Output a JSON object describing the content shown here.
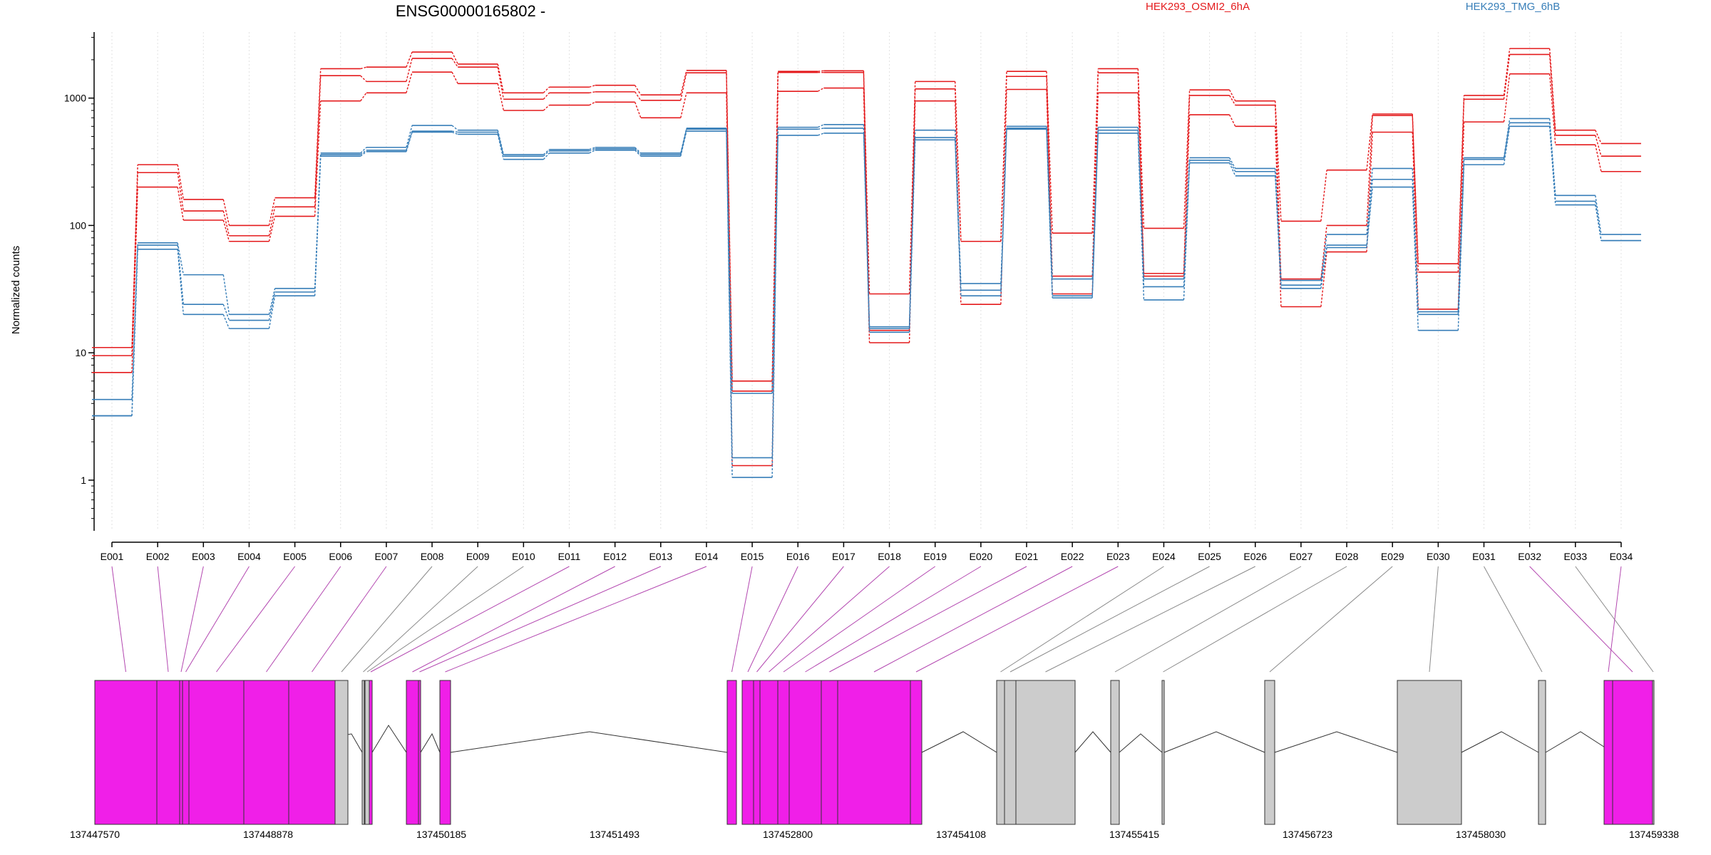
{
  "chart_data": {
    "type": "line",
    "title": "ENSG00000165802 -",
    "ylabel": "Normalized counts",
    "xlabel": "",
    "y_scale": "log",
    "ylim": [
      0.4,
      3300
    ],
    "y_ticks": [
      1,
      10,
      100,
      1000
    ],
    "y_tick_labels": [
      "1",
      "10",
      "100",
      "1000"
    ],
    "grid": "vertical dotted",
    "legend_position": "top",
    "categories": [
      "E001",
      "E002",
      "E003",
      "E004",
      "E005",
      "E006",
      "E007",
      "E008",
      "E009",
      "E010",
      "E011",
      "E012",
      "E013",
      "E014",
      "E015",
      "E016",
      "E017",
      "E018",
      "E019",
      "E020",
      "E021",
      "E022",
      "E023",
      "E024",
      "E025",
      "E026",
      "E027",
      "E028",
      "E029",
      "E030",
      "E031",
      "E032",
      "E033",
      "E034"
    ],
    "series": [
      {
        "name": "HEK293_OSMI2_6hA",
        "color": "#e41a1c",
        "values": [
          11,
          300,
          160,
          100,
          165,
          1700,
          1750,
          2300,
          1850,
          1100,
          1220,
          1260,
          1060,
          1650,
          6,
          1620,
          1640,
          29,
          1350,
          75,
          1620,
          87,
          1700,
          95,
          1160,
          950,
          108,
          272,
          750,
          50,
          1050,
          2450,
          560,
          440
        ]
      },
      {
        "name": "HEK293_OSMI2_6hA",
        "color": "#e41a1c",
        "values": [
          9.5,
          260,
          130,
          83,
          140,
          1500,
          1350,
          2050,
          1750,
          980,
          1100,
          1120,
          960,
          1580,
          5,
          1590,
          1590,
          15,
          1180,
          75,
          1480,
          40,
          1580,
          42,
          1050,
          880,
          38,
          100,
          730,
          43,
          980,
          2200,
          510,
          350
        ]
      },
      {
        "name": "HEK293_OSMI2_6hA",
        "color": "#e41a1c",
        "values": [
          7,
          200,
          110,
          75,
          118,
          950,
          1100,
          1600,
          1300,
          800,
          880,
          930,
          700,
          1100,
          1.3,
          1130,
          1200,
          12,
          950,
          24,
          1170,
          29,
          1100,
          40,
          740,
          600,
          23,
          62,
          540,
          22,
          650,
          1550,
          430,
          265
        ]
      },
      {
        "name": "HEK293_TMG_6hB",
        "color": "#377eb8",
        "values": [
          4.3,
          73,
          41,
          20,
          32,
          370,
          410,
          610,
          560,
          360,
          395,
          410,
          370,
          580,
          4.8,
          590,
          620,
          16,
          560,
          35,
          600,
          38,
          590,
          38,
          340,
          280,
          37,
          85,
          280,
          21,
          340,
          690,
          172,
          85
        ]
      },
      {
        "name": "HEK293_TMG_6hB",
        "color": "#377eb8",
        "values": [
          3.2,
          70,
          24,
          18,
          30,
          360,
          390,
          550,
          540,
          350,
          385,
          400,
          360,
          570,
          1.5,
          570,
          580,
          15.5,
          490,
          31,
          580,
          28,
          560,
          33,
          325,
          265,
          34,
          70,
          230,
          20,
          330,
          640,
          155,
          76
        ]
      },
      {
        "name": "HEK293_TMG_6hB",
        "color": "#377eb8",
        "values": [
          3.2,
          65,
          20,
          15.5,
          28,
          350,
          380,
          540,
          520,
          330,
          370,
          390,
          350,
          550,
          1.05,
          510,
          530,
          14.5,
          470,
          28,
          570,
          27,
          530,
          26,
          310,
          245,
          32,
          67,
          200,
          15,
          300,
          600,
          145,
          76
        ]
      }
    ],
    "genomic_axis": {
      "labels": [
        "137447570",
        "137448878",
        "137450185",
        "137451493",
        "137452800",
        "137454108",
        "137455415",
        "137456723",
        "137458030",
        "137459338"
      ]
    },
    "exon_map": {
      "colors": {
        "significant": "#f01fe8",
        "other": "#cccccc"
      },
      "exon_blocks": [
        "E001",
        "E002",
        "E003",
        "E004",
        "E005",
        "E006",
        "E007",
        "E008",
        "E009",
        "E010",
        "E011",
        "E012",
        "E013",
        "E014",
        "E015",
        "E016",
        "E017",
        "E018",
        "E019",
        "E020",
        "E021",
        "E022",
        "E023",
        "E024",
        "E025",
        "E026",
        "E027",
        "E028",
        "E029",
        "E030",
        "E031",
        "E032",
        "E033",
        "E034"
      ],
      "significant": [
        true,
        true,
        true,
        true,
        true,
        true,
        true,
        false,
        false,
        false,
        true,
        true,
        true,
        true,
        true,
        true,
        true,
        true,
        true,
        true,
        true,
        true,
        true,
        false,
        false,
        false,
        false,
        false,
        false,
        false,
        false,
        true,
        false,
        true
      ]
    }
  }
}
